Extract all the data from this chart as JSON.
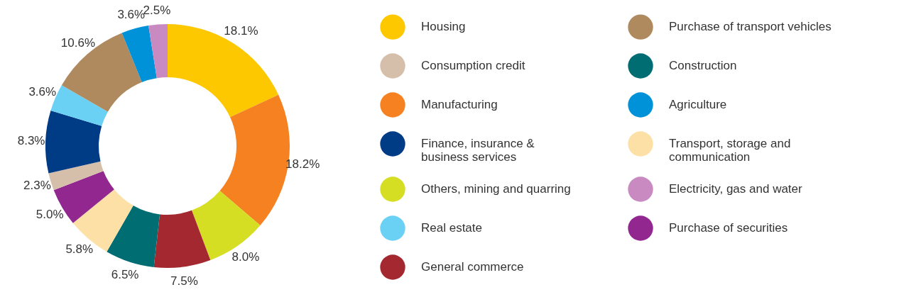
{
  "chart_data": {
    "type": "donut",
    "categories": [
      "Housing",
      "Manufacturing",
      "Others, mining and quarring",
      "General commerce",
      "Construction",
      "Transport, storage and communication",
      "Purchase of securities",
      "Consumption credit",
      "Finance, insurance & business services",
      "Real estate",
      "Purchase of transport vehicles",
      "Agriculture",
      "Electricity, gas and water"
    ],
    "values": [
      18.1,
      18.2,
      8.0,
      7.5,
      6.5,
      5.8,
      5.0,
      2.3,
      8.3,
      3.6,
      10.6,
      3.6,
      2.5
    ],
    "value_labels": [
      "18.1%",
      "18.2%",
      "8.0%",
      "7.5%",
      "6.5%",
      "5.8%",
      "5.0%",
      "2.3%",
      "8.3%",
      "3.6%",
      "10.6%",
      "3.6%",
      "2.5%"
    ],
    "colors": [
      "#fdc800",
      "#f68121",
      "#d5de23",
      "#a4282f",
      "#006d73",
      "#fde0a5",
      "#92278f",
      "#d5bfaa",
      "#003b86",
      "#6ad1f5",
      "#b08a5f",
      "#0092d8",
      "#c88ac0"
    ],
    "legend": "right"
  }
}
